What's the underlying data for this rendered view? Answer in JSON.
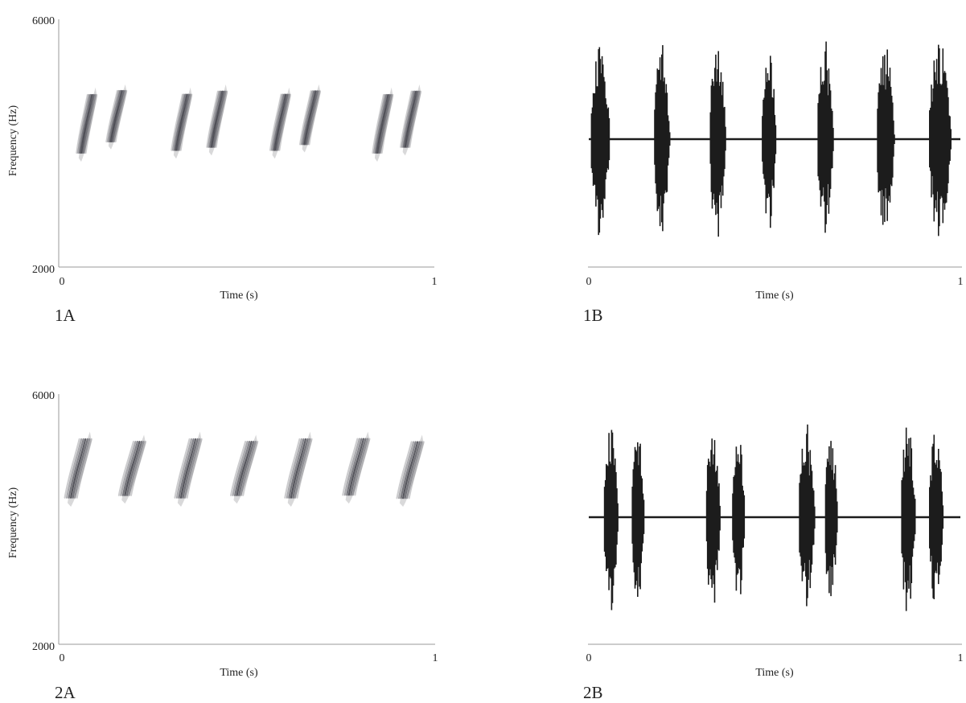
{
  "chart_data": [
    {
      "panel": "1A",
      "type": "heatmap",
      "xlabel": "Time (s)",
      "ylabel": "Frequency (Hz)",
      "xlim": [
        0,
        1
      ],
      "ylim": [
        2000,
        6000
      ],
      "x_ticks": [
        "0",
        "1"
      ],
      "y_ticks": [
        "2000",
        "6000"
      ],
      "notes_color": "#2a2a33",
      "notes": [
        {
          "t0": 0.045,
          "t1": 0.09,
          "f_low": 3700,
          "f_high": 4900
        },
        {
          "t0": 0.125,
          "t1": 0.17,
          "f_low": 3900,
          "f_high": 4950
        },
        {
          "t0": 0.3,
          "t1": 0.345,
          "f_low": 3750,
          "f_high": 4900
        },
        {
          "t0": 0.395,
          "t1": 0.44,
          "f_low": 3800,
          "f_high": 4950
        },
        {
          "t0": 0.565,
          "t1": 0.61,
          "f_low": 3750,
          "f_high": 4900
        },
        {
          "t0": 0.645,
          "t1": 0.69,
          "f_low": 3850,
          "f_high": 4950
        },
        {
          "t0": 0.84,
          "t1": 0.885,
          "f_low": 3700,
          "f_high": 4900
        },
        {
          "t0": 0.915,
          "t1": 0.96,
          "f_low": 3800,
          "f_high": 4950
        }
      ]
    },
    {
      "panel": "1B",
      "type": "line",
      "xlabel": "Time (s)",
      "xlim": [
        0,
        1
      ],
      "x_ticks": [
        "0",
        "1"
      ],
      "wave_color": "#1c1c1c",
      "bursts": [
        {
          "t0": 0.005,
          "t1": 0.065,
          "amp": 0.98
        },
        {
          "t0": 0.175,
          "t1": 0.225,
          "amp": 0.97
        },
        {
          "t0": 0.325,
          "t1": 0.375,
          "amp": 1.0
        },
        {
          "t0": 0.465,
          "t1": 0.51,
          "amp": 0.93
        },
        {
          "t0": 0.615,
          "t1": 0.665,
          "amp": 0.97
        },
        {
          "t0": 0.775,
          "t1": 0.83,
          "amp": 0.96
        },
        {
          "t0": 0.915,
          "t1": 0.985,
          "amp": 0.99
        }
      ]
    },
    {
      "panel": "2A",
      "type": "heatmap",
      "xlabel": "Time (s)",
      "ylabel": "Frequency (Hz)",
      "xlim": [
        0,
        1
      ],
      "ylim": [
        2000,
        6000
      ],
      "x_ticks": [
        "0",
        "1"
      ],
      "y_ticks": [
        "2000",
        "6000"
      ],
      "notes_color": "#2a2a33",
      "notes": [
        {
          "t0": 0.015,
          "t1": 0.075,
          "f_low": 4200,
          "f_high": 5400
        },
        {
          "t0": 0.16,
          "t1": 0.22,
          "f_low": 4250,
          "f_high": 5350
        },
        {
          "t0": 0.31,
          "t1": 0.37,
          "f_low": 4200,
          "f_high": 5400
        },
        {
          "t0": 0.46,
          "t1": 0.52,
          "f_low": 4250,
          "f_high": 5350
        },
        {
          "t0": 0.605,
          "t1": 0.665,
          "f_low": 4200,
          "f_high": 5400
        },
        {
          "t0": 0.76,
          "t1": 0.82,
          "f_low": 4250,
          "f_high": 5400
        },
        {
          "t0": 0.905,
          "t1": 0.965,
          "f_low": 4200,
          "f_high": 5350
        }
      ]
    },
    {
      "panel": "2B",
      "type": "line",
      "xlabel": "Time (s)",
      "xlim": [
        0,
        1
      ],
      "x_ticks": [
        "0",
        "1"
      ],
      "wave_color": "#1c1c1c",
      "bursts": [
        {
          "t0": 0.04,
          "t1": 0.085,
          "amp": 1.0
        },
        {
          "t0": 0.115,
          "t1": 0.155,
          "amp": 0.9
        },
        {
          "t0": 0.315,
          "t1": 0.36,
          "amp": 0.94
        },
        {
          "t0": 0.385,
          "t1": 0.425,
          "amp": 0.91
        },
        {
          "t0": 0.565,
          "t1": 0.615,
          "amp": 0.94
        },
        {
          "t0": 0.635,
          "t1": 0.675,
          "amp": 0.88
        },
        {
          "t0": 0.84,
          "t1": 0.885,
          "amp": 1.0
        },
        {
          "t0": 0.915,
          "t1": 0.96,
          "amp": 0.91
        }
      ]
    }
  ]
}
